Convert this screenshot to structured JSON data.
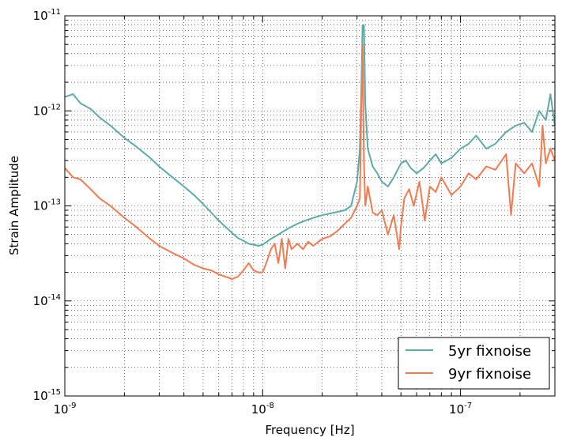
{
  "chart_data": {
    "type": "line",
    "title": "",
    "xlabel": "Frequency [Hz]",
    "ylabel": "Strain Amplitude",
    "xscale": "log",
    "yscale": "log",
    "xlim": [
      1e-09,
      3e-07
    ],
    "ylim": [
      1e-15,
      1e-11
    ],
    "grid": true,
    "legend_position": "lower-right",
    "x_ticks": [
      {
        "base": "10",
        "exp": "-9",
        "value": 1e-09
      },
      {
        "base": "10",
        "exp": "-8",
        "value": 1e-08
      },
      {
        "base": "10",
        "exp": "-7",
        "value": 1e-07
      }
    ],
    "y_ticks": [
      {
        "base": "10",
        "exp": "-15",
        "value": 1e-15
      },
      {
        "base": "10",
        "exp": "-14",
        "value": 1e-14
      },
      {
        "base": "10",
        "exp": "-13",
        "value": 1e-13
      },
      {
        "base": "10",
        "exp": "-12",
        "value": 1e-12
      },
      {
        "base": "10",
        "exp": "-11",
        "value": 1e-11
      }
    ],
    "series": [
      {
        "name": "5yr fixnoise",
        "color": "#5aaca7",
        "x": [
          1e-09,
          1.1e-09,
          1.2e-09,
          1.35e-09,
          1.5e-09,
          1.7e-09,
          2e-09,
          2.3e-09,
          2.7e-09,
          3e-09,
          3.5e-09,
          4e-09,
          4.5e-09,
          5e-09,
          5.5e-09,
          6e-09,
          6.5e-09,
          7e-09,
          7.5e-09,
          8e-09,
          8.5e-09,
          9e-09,
          9.5e-09,
          1e-08,
          1.1e-08,
          1.2e-08,
          1.35e-08,
          1.5e-08,
          1.7e-08,
          2e-08,
          2.3e-08,
          2.6e-08,
          2.8e-08,
          3e-08,
          3.1e-08,
          3.15e-08,
          3.2e-08,
          3.25e-08,
          3.3e-08,
          3.4e-08,
          3.6e-08,
          3.8e-08,
          4e-08,
          4.3e-08,
          4.6e-08,
          5e-08,
          5.3e-08,
          5.6e-08,
          6e-08,
          6.5e-08,
          7e-08,
          7.5e-08,
          8e-08,
          9e-08,
          1e-07,
          1.1e-07,
          1.2e-07,
          1.35e-07,
          1.5e-07,
          1.7e-07,
          1.9e-07,
          2.1e-07,
          2.3e-07,
          2.5e-07,
          2.7e-07,
          2.85e-07,
          3e-07
        ],
        "y": [
          1.4e-12,
          1.5e-12,
          1.2e-12,
          1.05e-12,
          8.5e-13,
          7e-13,
          5.2e-13,
          4.2e-13,
          3.2e-13,
          2.6e-13,
          2e-13,
          1.6e-13,
          1.3e-13,
          1.05e-13,
          8.5e-14,
          7e-14,
          6e-14,
          5.2e-14,
          4.6e-14,
          4.3e-14,
          4e-14,
          3.9e-14,
          3.8e-14,
          3.9e-14,
          4.5e-14,
          5e-14,
          5.8e-14,
          6.5e-14,
          7.2e-14,
          8e-14,
          8.5e-14,
          9e-14,
          1e-13,
          1.8e-13,
          4e-13,
          1.5e-12,
          8e-12,
          8e-12,
          1.2e-12,
          4e-13,
          2.6e-13,
          2.2e-13,
          1.8e-13,
          1.6e-13,
          2e-13,
          2.8e-13,
          3e-13,
          2.5e-13,
          2.2e-13,
          2.5e-13,
          3e-13,
          3.5e-13,
          2.8e-13,
          3.2e-13,
          4e-13,
          4.5e-13,
          5.5e-13,
          4e-13,
          4.5e-13,
          6e-13,
          7e-13,
          7.5e-13,
          6e-13,
          1e-12,
          8e-13,
          1.5e-12,
          7e-13
        ]
      },
      {
        "name": "9yr fixnoise",
        "color": "#f47a50",
        "x": [
          1e-09,
          1.1e-09,
          1.2e-09,
          1.35e-09,
          1.5e-09,
          1.7e-09,
          2e-09,
          2.3e-09,
          2.7e-09,
          3e-09,
          3.5e-09,
          4e-09,
          4.5e-09,
          5e-09,
          5.5e-09,
          6e-09,
          6.5e-09,
          7e-09,
          7.5e-09,
          8e-09,
          8.5e-09,
          9e-09,
          9.5e-09,
          1e-08,
          1.05e-08,
          1.1e-08,
          1.15e-08,
          1.2e-08,
          1.25e-08,
          1.3e-08,
          1.35e-08,
          1.4e-08,
          1.5e-08,
          1.6e-08,
          1.7e-08,
          1.8e-08,
          2e-08,
          2.2e-08,
          2.4e-08,
          2.6e-08,
          2.8e-08,
          3e-08,
          3.1e-08,
          3.15e-08,
          3.2e-08,
          3.25e-08,
          3.3e-08,
          3.4e-08,
          3.6e-08,
          3.8e-08,
          4e-08,
          4.3e-08,
          4.6e-08,
          4.9e-08,
          5e-08,
          5.2e-08,
          5.5e-08,
          5.8e-08,
          6.2e-08,
          6.6e-08,
          7e-08,
          7.5e-08,
          8e-08,
          9e-08,
          1e-07,
          1.1e-07,
          1.2e-07,
          1.35e-07,
          1.5e-07,
          1.7e-07,
          1.8e-07,
          1.9e-07,
          2.1e-07,
          2.3e-07,
          2.5e-07,
          2.6e-07,
          2.7e-07,
          2.85e-07,
          3e-07
        ],
        "y": [
          2.5e-13,
          2e-13,
          1.9e-13,
          1.5e-13,
          1.2e-13,
          1e-13,
          7.5e-14,
          6e-14,
          4.5e-14,
          3.8e-14,
          3.2e-14,
          2.8e-14,
          2.4e-14,
          2.2e-14,
          2.1e-14,
          1.9e-14,
          1.8e-14,
          1.7e-14,
          1.8e-14,
          2.1e-14,
          2.5e-14,
          2.1e-14,
          2e-14,
          2e-14,
          2.6e-14,
          3.5e-14,
          4e-14,
          2.5e-14,
          4.5e-14,
          2.2e-14,
          4.5e-14,
          3.5e-14,
          4e-14,
          3.5e-14,
          4.2e-14,
          3.8e-14,
          4.5e-14,
          4.8e-14,
          5.5e-14,
          6.5e-14,
          7.5e-14,
          1e-13,
          1.2e-13,
          1e-12,
          5e-12,
          3e-13,
          1e-13,
          1.6e-13,
          8.5e-14,
          8e-14,
          9e-14,
          5e-14,
          8e-14,
          3.5e-14,
          6e-14,
          1.2e-13,
          1.5e-13,
          1e-13,
          1.8e-13,
          7e-14,
          1.6e-13,
          1.4e-13,
          2e-13,
          1.3e-13,
          1.6e-13,
          2.2e-13,
          1.9e-13,
          2.6e-13,
          2.4e-13,
          3.5e-13,
          8e-14,
          2.8e-13,
          2.2e-13,
          2.8e-13,
          1.6e-13,
          7e-13,
          2.8e-13,
          4e-13,
          3e-13
        ]
      }
    ]
  }
}
